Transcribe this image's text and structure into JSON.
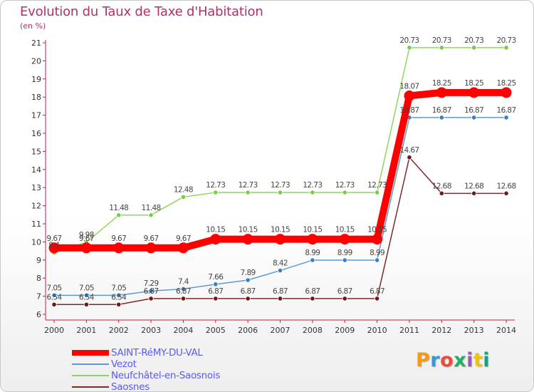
{
  "chart_data": {
    "type": "line",
    "title": "Evolution du Taux de Taxe d'Habitation",
    "subtitle": "(en %)",
    "categories": [
      "2000",
      "2001",
      "2002",
      "2003",
      "2004",
      "2005",
      "2006",
      "2007",
      "2008",
      "2009",
      "2010",
      "2011",
      "2012",
      "2013",
      "2014"
    ],
    "ylim": [
      6,
      21
    ],
    "yticks": [
      6,
      7,
      8,
      9,
      10,
      11,
      12,
      13,
      14,
      15,
      16,
      17,
      18,
      19,
      20,
      21
    ],
    "grid": false,
    "legend_position": "bottom-left",
    "series": [
      {
        "name": "SAINT-RéMY-DU-VAL",
        "color": "#ff0000",
        "values": [
          9.67,
          9.67,
          9.67,
          9.67,
          9.67,
          10.15,
          10.15,
          10.15,
          10.15,
          10.15,
          10.15,
          18.07,
          18.25,
          18.25,
          18.25
        ],
        "labels": [
          "9.67",
          "9.67",
          "9.67",
          "9.67",
          "9.67",
          "10.15",
          "10.15",
          "10.15",
          "10.15",
          "10.15",
          "10.15",
          "18.07",
          "18.25",
          "18.25",
          "18.25"
        ]
      },
      {
        "name": "Vezot",
        "color": "#5b9bd5",
        "values": [
          7.05,
          7.05,
          7.05,
          7.29,
          7.4,
          7.66,
          7.89,
          8.42,
          8.99,
          8.99,
          8.99,
          16.87,
          16.87,
          16.87,
          16.87
        ],
        "labels": [
          "7.05",
          "7.05",
          "7.05",
          "7.29",
          "7.4",
          "7.66",
          "7.89",
          "8.42",
          "8.99",
          "8.99",
          "8.99",
          "16.87",
          "16.87",
          "16.87",
          "16.87"
        ]
      },
      {
        "name": "Neufchâtel-en-Saosnois",
        "color": "#8fd660",
        "values": [
          9.4,
          9.98,
          11.48,
          11.48,
          12.48,
          12.73,
          12.73,
          12.73,
          12.73,
          12.73,
          12.73,
          20.73,
          20.73,
          20.73,
          20.73
        ],
        "labels": [
          "9.4",
          "9.98",
          "11.48",
          "11.48",
          "12.48",
          "12.73",
          "12.73",
          "12.73",
          "12.73",
          "12.73",
          "12.73",
          "20.73",
          "20.73",
          "20.73",
          "20.73"
        ]
      },
      {
        "name": "Saosnes",
        "color": "#7b2a2a",
        "values": [
          6.54,
          6.54,
          6.54,
          6.87,
          6.87,
          6.87,
          6.87,
          6.87,
          6.87,
          6.87,
          6.87,
          14.67,
          12.68,
          12.68,
          12.68
        ],
        "labels": [
          "6.54",
          "6.54",
          "6.54",
          "6.87",
          "6.87",
          "6.87",
          "6.87",
          "6.87",
          "6.87",
          "6.87",
          "6.87",
          "14.67",
          "12.68",
          "12.68",
          "12.68"
        ]
      }
    ]
  },
  "logo": {
    "text": "Proxiti",
    "colors": [
      "#f39c12",
      "#3498db",
      "#e74c3c",
      "#27ae60",
      "#9b59b6",
      "#f1c40f",
      "#16a085"
    ]
  }
}
